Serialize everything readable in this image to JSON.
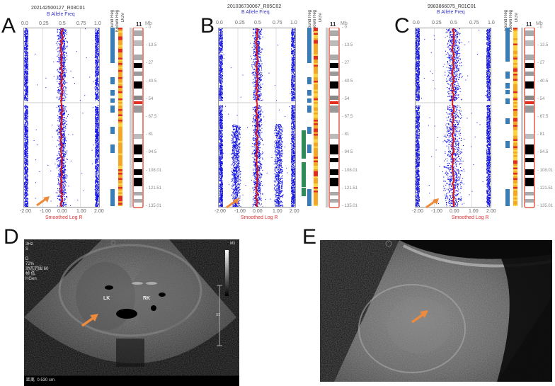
{
  "figure": {
    "panels": [
      {
        "letter": "A",
        "sample_id": "202142500127_R03C01",
        "baf_title": "B Allele Freq",
        "baf_ticks": [
          "0.0",
          "0.25",
          "0.5",
          "0.75",
          "1.0"
        ],
        "logr_ticks": [
          "-2.00",
          "-1.00",
          "0.00",
          "1.00",
          "2.00"
        ],
        "logr_title": "Smoothed Log R",
        "track_labels": [
          "Found Reg",
          "Known Reg",
          "DGV"
        ],
        "chromosome": "11",
        "mb_unit": "Mb",
        "mb_ticks": [
          "0",
          "13.5",
          "27",
          "40.5",
          "54",
          "67.5",
          "81",
          "94.5",
          "108.01",
          "121.51",
          "135.01"
        ],
        "pattern": "normal"
      },
      {
        "letter": "B",
        "sample_id": "201036730067_R05C02",
        "baf_title": "B Allele Freq",
        "baf_ticks": [
          "0.0",
          "0.25",
          "0.5",
          "0.75",
          "1.0"
        ],
        "logr_ticks": [
          "-2.00",
          "-1.00",
          "0.00",
          "1.00",
          "2.00"
        ],
        "logr_title": "Smoothed Log R",
        "track_labels": [
          "Found Reg",
          "Known Reg",
          "DGV"
        ],
        "chromosome": "11",
        "mb_unit": "Mb",
        "mb_ticks": [
          "0",
          "13.5",
          "27",
          "40.5",
          "54",
          "67.5",
          "81",
          "94.5",
          "108.01",
          "121.51",
          "135.01"
        ],
        "pattern": "mosaic"
      },
      {
        "letter": "C",
        "sample_id": "9983866075_R01C01",
        "baf_title": "B Allele Freq",
        "baf_ticks": [
          "0.0",
          "0.25",
          "0.5",
          "0.75",
          "1.0"
        ],
        "logr_ticks": [
          "-2.00",
          "-1.00",
          "0.00",
          "1.00",
          "2.00"
        ],
        "logr_title": "Smoothed Log R",
        "track_labels": [
          "Found Reg",
          "Known Reg",
          "DGV"
        ],
        "chromosome": "11",
        "mb_unit": "Mb",
        "mb_ticks": [
          "0",
          "13.5",
          "27",
          "40.5",
          "54",
          "67.5",
          "81",
          "94.5",
          "108.01",
          "121.51",
          "135.01"
        ],
        "pattern": "wide"
      }
    ],
    "ultrasound_d": {
      "letter": "D",
      "overlay_text": "3Hz\nS\n\nD\n72%\n动态范围 60\n帧 低\nHGen",
      "measurement": "距离  0.530 cm",
      "left_kidney": "LK",
      "right_kidney": "RK",
      "probe_label": "M3",
      "scale_marker": "X2"
    },
    "ultrasound_e": {
      "letter": "E"
    },
    "colors": {
      "baf_points": "#1010e0",
      "logr_line": "#e01010",
      "found_reg": "#3a7db5",
      "known_reg_green": "#2e8b57",
      "dgv_red": "#e52b1e",
      "dgv_orange": "#f5a623",
      "dgv_yellow": "#ffd23f",
      "arrow": "#ee8a3c",
      "chr_outline": "#e05b4b"
    }
  }
}
